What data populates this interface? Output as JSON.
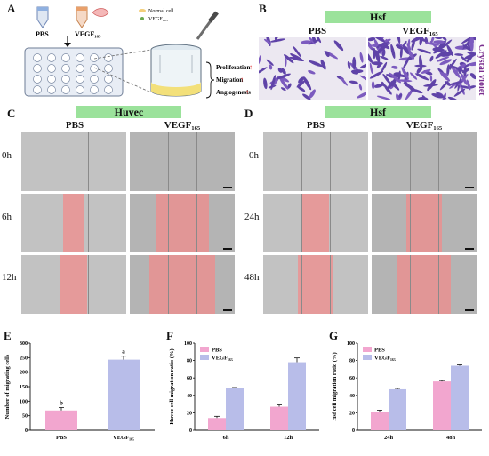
{
  "panels": {
    "A": "A",
    "B": "B",
    "C": "C",
    "D": "D",
    "E": "E",
    "F": "F",
    "G": "G"
  },
  "panel_a": {
    "tube1": "PBS",
    "tube2": "VEGF₁₆₅",
    "legend_normal": "Normal cell",
    "legend_vegf": "VEGF₁₆₅",
    "outcomes": [
      "Proliferation",
      "Migration",
      "Angiogenesis"
    ],
    "arrow_color": "#e03a3a"
  },
  "panel_b": {
    "header": "Hsf",
    "cols": [
      "PBS",
      "VEGF₁₆₅"
    ],
    "side_label": "Crystal violet",
    "side_color": "#7a2f8f"
  },
  "panel_c": {
    "header": "Huvec",
    "cols": [
      "PBS",
      "VEGF₁₆₅"
    ],
    "rows": [
      "0h",
      "6h",
      "12h"
    ]
  },
  "panel_d": {
    "header": "Hsf",
    "cols": [
      "PBS",
      "VEGF₁₆₅"
    ],
    "rows": [
      "0h",
      "24h",
      "48h"
    ]
  },
  "colors": {
    "pbs": "#f2a6cf",
    "vegf": "#b8bde9",
    "green": "#9be29b",
    "wound": "#f08c8c"
  },
  "chart_data": [
    {
      "type": "bar",
      "panel": "E",
      "categories": [
        "PBS",
        "VEGF₁₆₅"
      ],
      "values": [
        68,
        243
      ],
      "errors": [
        10,
        12
      ],
      "letters": [
        "b",
        "a"
      ],
      "ylabel": "Number of migrating cells",
      "ylim": [
        0,
        300
      ],
      "yticks": [
        "0",
        "50",
        "100",
        "150",
        "200",
        "250",
        "300"
      ],
      "colors": [
        "#f2a6cf",
        "#b8bde9"
      ]
    },
    {
      "type": "bar",
      "panel": "F",
      "categories": [
        "6h",
        "12h"
      ],
      "series": [
        {
          "name": "PBS",
          "values": [
            14,
            27
          ],
          "errors": [
            2,
            2
          ]
        },
        {
          "name": "VEGF₁₆₅",
          "values": [
            48,
            78
          ],
          "errors": [
            1,
            5
          ]
        }
      ],
      "ylabel": "Huvec cell migration ratio (%)",
      "ylim": [
        0,
        100
      ],
      "yticks": [
        "0",
        "20",
        "40",
        "60",
        "80",
        "100"
      ],
      "legend": "top-left"
    },
    {
      "type": "bar",
      "panel": "G",
      "categories": [
        "24h",
        "48h"
      ],
      "series": [
        {
          "name": "PBS",
          "values": [
            21,
            56
          ],
          "errors": [
            2,
            1
          ]
        },
        {
          "name": "VEGF₁₆₅",
          "values": [
            47,
            74
          ],
          "errors": [
            1,
            1
          ]
        }
      ],
      "ylabel": "Hsf cell migration ratio (%)",
      "ylim": [
        0,
        100
      ],
      "yticks": [
        "0",
        "20",
        "40",
        "60",
        "80",
        "100"
      ],
      "legend": "top-left"
    }
  ]
}
